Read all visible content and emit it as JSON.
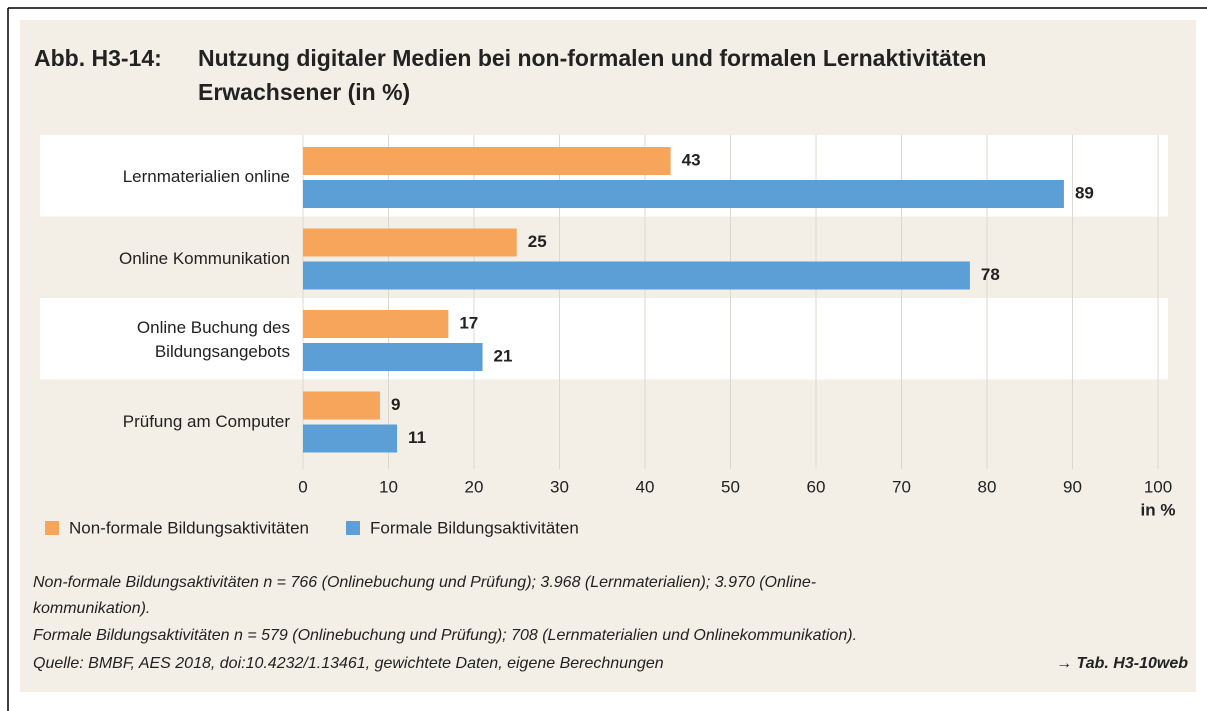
{
  "chart_data": {
    "type": "bar",
    "orientation": "horizontal",
    "title_label": "Abb. H3-14:",
    "title": [
      "Nutzung digitaler Medien bei non-formalen und formalen Lernaktivitäten",
      "Erwachsener (in %)"
    ],
    "categories": [
      "Lernmaterialien online",
      "Online Kommunikation",
      "Online Buchung des Bildungsangebots",
      "Prüfung am Computer"
    ],
    "series": [
      {
        "name": "Non-formale Bildungsaktivitäten",
        "color": "#f6a55a",
        "values": [
          43,
          25,
          17,
          9
        ]
      },
      {
        "name": "Formale Bildungsaktivitäten",
        "color": "#5b9fd6",
        "values": [
          89,
          78,
          21,
          11
        ]
      }
    ],
    "xlim": [
      0,
      100
    ],
    "xticks": [
      0,
      10,
      20,
      30,
      40,
      50,
      60,
      70,
      80,
      90,
      100
    ],
    "x_unit_label": "in %",
    "grid": true,
    "legend": "bottom",
    "notes": [
      "Non-formale Bildungsaktivitäten n = 766 (Onlinebuchung und Prüfung); 3.968 (Lernmaterialien); 3.970 (Online-",
      "kommunikation).",
      "Formale Bildungsaktivitäten n = 579 (Onlinebuchung und Prüfung); 708 (Lernmaterialien und Onlinekommunikation)."
    ],
    "source": "Quelle: BMBF, AES 2018, doi:10.4232/1.13461, gewichtete Daten, eigene Berechnungen",
    "reference": "→ Tab. H3-10web"
  }
}
